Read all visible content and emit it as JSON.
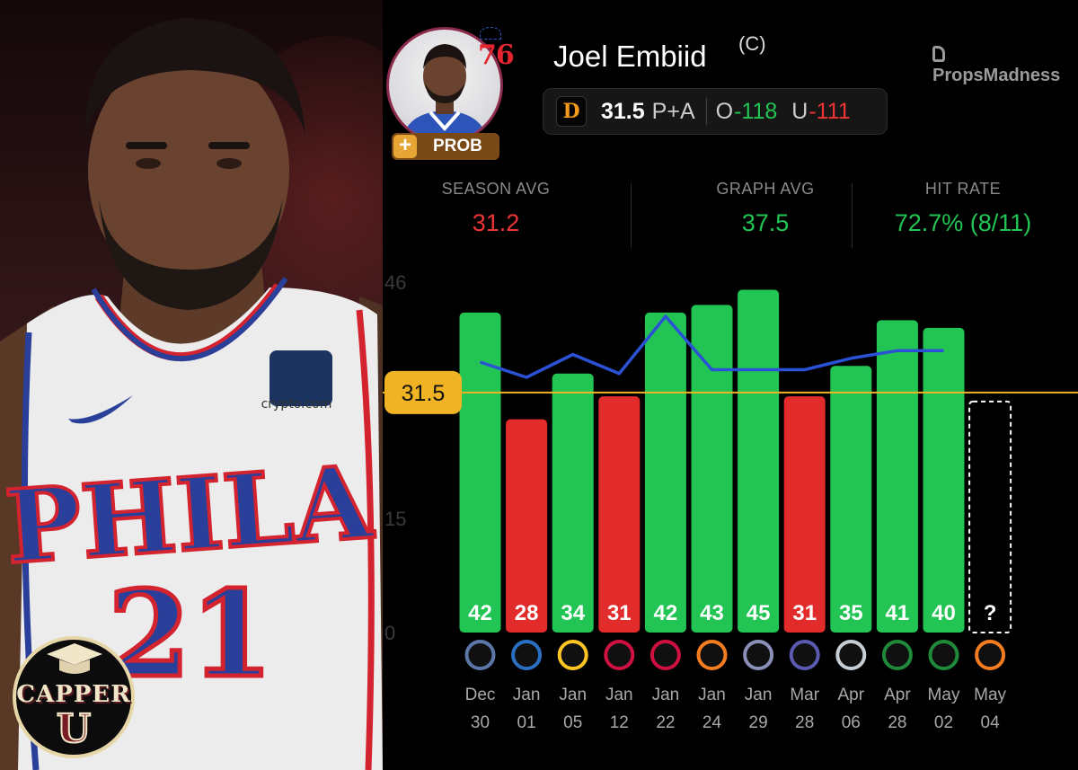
{
  "player": {
    "name": "Joel Embiid",
    "position": "(C)",
    "team_logo_text": "76",
    "badge": "PROB",
    "badge_icon": "plus-icon"
  },
  "brand": {
    "name": "PropsMadness"
  },
  "prop": {
    "book_icon": "draftkings-icon",
    "line": "31.5",
    "type": "P+A",
    "over_label": "O",
    "over_odds": "-118",
    "under_label": "U",
    "under_odds": "-111"
  },
  "stats": [
    {
      "label": "SEASON AVG",
      "value": "31.2",
      "color": "#ee3434"
    },
    {
      "label": "GRAPH AVG",
      "value": "37.5",
      "color": "#22c454"
    },
    {
      "label": "HIT RATE",
      "value": "72.7% (8/11)",
      "color": "#22c454"
    }
  ],
  "photo": {
    "jersey_text": "PHILA",
    "jersey_number": "21",
    "sponsor": "crypto.com",
    "logo_top": "CAPPER",
    "logo_bottom": "U"
  },
  "chart_data": {
    "type": "bar",
    "y_ticks": [
      "46",
      "15",
      "0"
    ],
    "tick_values": [
      46,
      15,
      0
    ],
    "ylim": [
      0,
      46
    ],
    "threshold": 31.5,
    "threshold_label": "31.5",
    "categories": [
      {
        "month": "Dec",
        "day": "30",
        "opponent_icon": "grizzlies-logo-icon"
      },
      {
        "month": "Jan",
        "day": "01",
        "opponent_icon": "mavericks-logo-icon"
      },
      {
        "month": "Jan",
        "day": "05",
        "opponent_icon": "nuggets-logo-icon"
      },
      {
        "month": "Jan",
        "day": "12",
        "opponent_icon": "raptors-logo-icon"
      },
      {
        "month": "Jan",
        "day": "22",
        "opponent_icon": "rockets-logo-icon"
      },
      {
        "month": "Jan",
        "day": "24",
        "opponent_icon": "knicks-logo-icon"
      },
      {
        "month": "Jan",
        "day": "29",
        "opponent_icon": "kings-logo-icon"
      },
      {
        "month": "Mar",
        "day": "28",
        "opponent_icon": "hornets-logo-icon"
      },
      {
        "month": "Apr",
        "day": "06",
        "opponent_icon": "spurs-logo-icon"
      },
      {
        "month": "Apr",
        "day": "28",
        "opponent_icon": "celtics-logo-icon"
      },
      {
        "month": "May",
        "day": "02",
        "opponent_icon": "celtics-logo-icon"
      },
      {
        "month": "May",
        "day": "04",
        "opponent_icon": "knicks-logo-icon"
      }
    ],
    "values": [
      42,
      28,
      34,
      31,
      42,
      43,
      45,
      31,
      35,
      41,
      40,
      null
    ],
    "value_labels": [
      "42",
      "28",
      "34",
      "31",
      "42",
      "43",
      "45",
      "31",
      "35",
      "41",
      "40",
      "?"
    ],
    "line_values": [
      35.5,
      33.5,
      36.5,
      34,
      41.5,
      34.5,
      34.5,
      34.5,
      36,
      37,
      37
    ],
    "colors": {
      "over": "#22c454",
      "under": "#e22b2b",
      "line": "#2b52d6",
      "threshold": "#f0b323"
    }
  }
}
